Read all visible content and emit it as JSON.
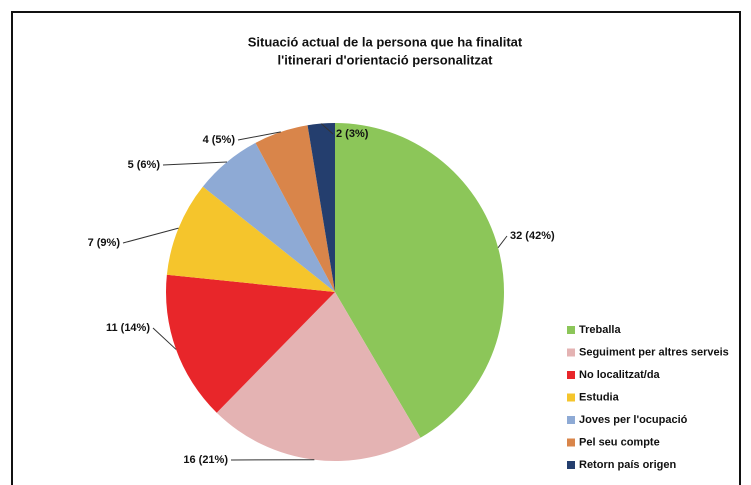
{
  "chart_data": {
    "type": "pie",
    "title": [
      "Situació actual de la persona que ha finalitat",
      "l'itinerari d'orientació personalitzat"
    ],
    "categories": [
      "Treballa",
      "Seguiment per altres serveis",
      "No localitzat/da",
      "Estudia",
      "Joves per l'ocupació",
      "Pel seu compte",
      "Retorn país origen"
    ],
    "values": [
      32,
      16,
      11,
      7,
      5,
      4,
      2
    ],
    "value_labels": [
      "32 (42%)",
      "16 (21%)",
      "11 (14%)",
      "7 (9%)",
      "5 (6%)",
      "4 (5%)",
      "2 (3%)"
    ],
    "colors": [
      "#8cc659",
      "#e4b3b3",
      "#e8262a",
      "#f5c52c",
      "#8eaad5",
      "#d9854a",
      "#243e6e"
    ],
    "legend": "right"
  }
}
